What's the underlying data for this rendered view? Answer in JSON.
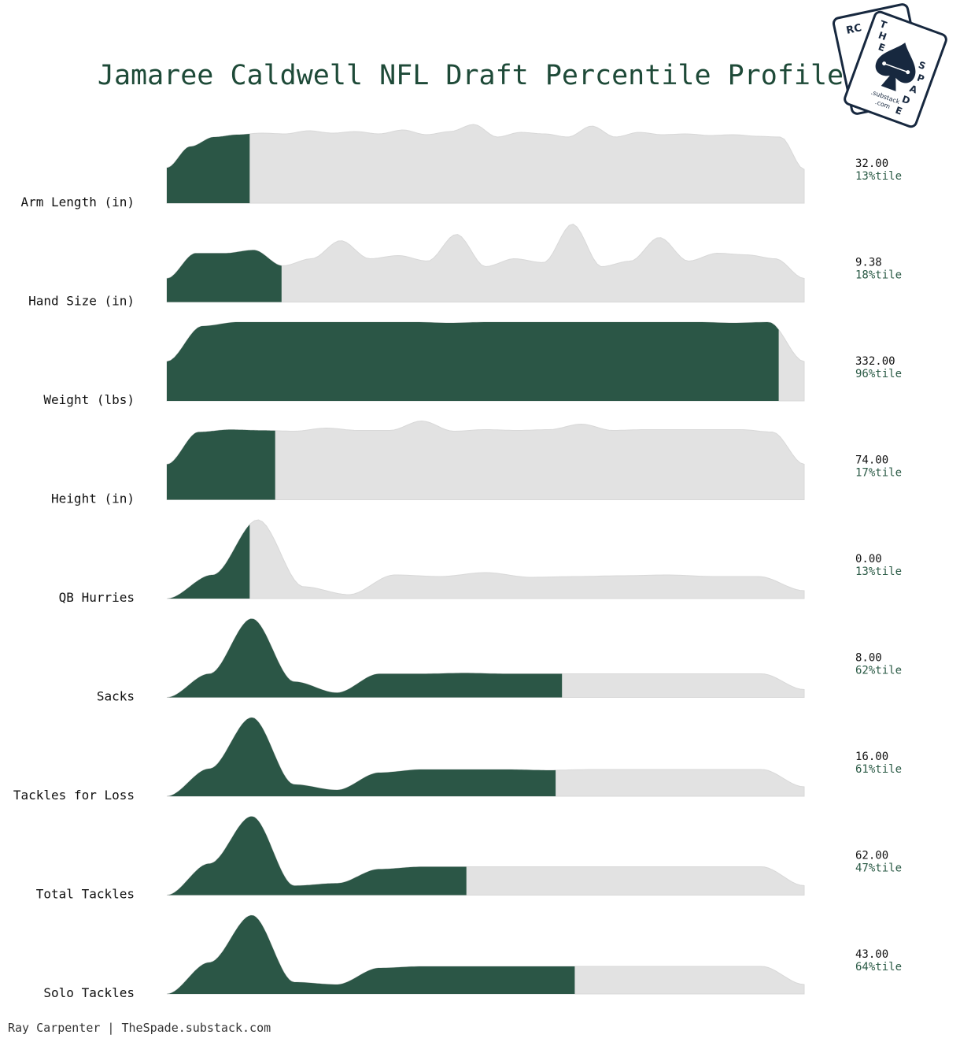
{
  "title": "Jamaree Caldwell NFL Draft Percentile Profile",
  "credit": "Ray Carpenter | TheSpade.substack.com",
  "logo": {
    "back_card": "RC",
    "front_card": [
      "T",
      "H",
      "E",
      "S",
      "P",
      "A",
      "D",
      "E"
    ],
    "sub_line1": ".substack",
    "sub_line2": ".com",
    "icon": "spade-icon"
  },
  "colors": {
    "filled": "#2b5646",
    "unfilled": "#e2e2e2",
    "title": "#1e4a38",
    "percentile_text": "#2a5a45",
    "logo": "#17283f"
  },
  "chart_data": {
    "type": "area",
    "subtype": "ridgeline-density",
    "x_range": [
      0,
      1
    ],
    "rows": [
      {
        "label": "Arm Length (in)",
        "value_text": "32.00",
        "percentile_text": "13%tile",
        "percentile": 0.13,
        "shape": "plateau",
        "density": [
          0.45,
          0.72,
          0.84,
          0.87,
          0.89,
          0.88,
          0.92,
          0.89,
          0.91,
          0.88,
          0.93,
          0.87,
          0.91,
          1.0,
          0.84,
          0.9,
          0.88,
          0.84,
          0.98,
          0.84,
          0.9,
          0.87,
          0.88,
          0.86,
          0.87,
          0.85,
          0.84,
          0.43
        ]
      },
      {
        "label": "Hand Size (in)",
        "value_text": "9.38",
        "percentile_text": "18%tile",
        "percentile": 0.18,
        "shape": "multimodal",
        "density": [
          0.3,
          0.62,
          0.62,
          0.66,
          0.46,
          0.55,
          0.78,
          0.55,
          0.59,
          0.52,
          0.86,
          0.45,
          0.55,
          0.5,
          0.99,
          0.45,
          0.52,
          0.82,
          0.52,
          0.62,
          0.6,
          0.55,
          0.3
        ]
      },
      {
        "label": "Weight (lbs)",
        "value_text": "332.00",
        "percentile_text": "96%tile",
        "percentile": 0.96,
        "shape": "plateau",
        "density": [
          0.5,
          0.95,
          1.0,
          1.0,
          1.0,
          1.0,
          1.0,
          1.0,
          0.99,
          1.0,
          1.0,
          1.0,
          1.0,
          1.0,
          1.0,
          1.0,
          0.99,
          1.0,
          0.5
        ]
      },
      {
        "label": "Height (in)",
        "value_text": "74.00",
        "percentile_text": "17%tile",
        "percentile": 0.17,
        "shape": "plateau",
        "density": [
          0.45,
          0.86,
          0.89,
          0.88,
          0.87,
          0.91,
          0.88,
          0.88,
          1.0,
          0.87,
          0.89,
          0.88,
          0.89,
          0.96,
          0.88,
          0.89,
          0.89,
          0.89,
          0.89,
          0.86,
          0.45
        ]
      },
      {
        "label": "QB Hurries",
        "value_text": "0.00",
        "percentile_text": "13%tile",
        "percentile": 0.13,
        "shape": "spike-then-flat",
        "density": [
          0.0,
          0.3,
          1.0,
          0.15,
          0.05,
          0.3,
          0.28,
          0.33,
          0.27,
          0.28,
          0.29,
          0.3,
          0.28,
          0.28,
          0.1
        ]
      },
      {
        "label": "Sacks",
        "value_text": "8.00",
        "percentile_text": "62%tile",
        "percentile": 0.62,
        "shape": "spike-then-flat",
        "density": [
          0.0,
          0.3,
          1.0,
          0.2,
          0.06,
          0.3,
          0.3,
          0.31,
          0.3,
          0.3,
          0.3,
          0.3,
          0.3,
          0.3,
          0.3,
          0.1
        ]
      },
      {
        "label": "Tackles for Loss",
        "value_text": "16.00",
        "percentile_text": "61%tile",
        "percentile": 0.61,
        "shape": "spike-then-flat",
        "density": [
          0.0,
          0.35,
          1.0,
          0.15,
          0.08,
          0.3,
          0.34,
          0.34,
          0.34,
          0.33,
          0.34,
          0.34,
          0.34,
          0.34,
          0.34,
          0.12
        ]
      },
      {
        "label": "Total Tackles",
        "value_text": "62.00",
        "percentile_text": "47%tile",
        "percentile": 0.47,
        "shape": "spike-then-flat",
        "density": [
          0.0,
          0.4,
          1.0,
          0.12,
          0.15,
          0.33,
          0.36,
          0.36,
          0.36,
          0.36,
          0.36,
          0.36,
          0.36,
          0.36,
          0.36,
          0.12
        ]
      },
      {
        "label": "Solo Tackles",
        "value_text": "43.00",
        "percentile_text": "64%tile",
        "percentile": 0.64,
        "shape": "spike-then-flat",
        "density": [
          0.0,
          0.4,
          1.0,
          0.15,
          0.12,
          0.33,
          0.35,
          0.35,
          0.35,
          0.35,
          0.35,
          0.35,
          0.35,
          0.35,
          0.35,
          0.12
        ]
      }
    ]
  }
}
